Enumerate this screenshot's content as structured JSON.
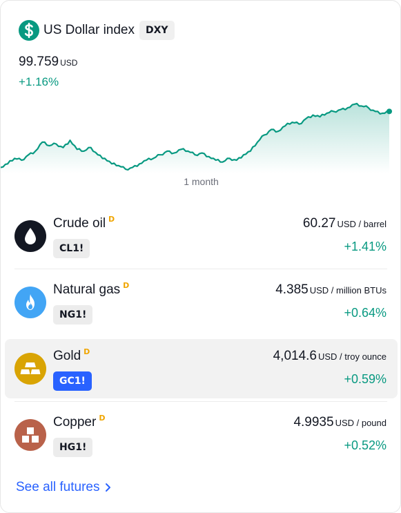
{
  "index": {
    "title": "US Dollar index",
    "ticker": "DXY",
    "price": "99.759",
    "currency": "USD",
    "change": "+1.16%",
    "period": "1 month",
    "icon": "dollar-icon",
    "accent_color": "#089981",
    "chart_data": {
      "type": "area",
      "series": [
        {
          "values": [
            97.85,
            97.95,
            98.1,
            98.05,
            98.2,
            98.3,
            98.55,
            98.45,
            98.5,
            98.4,
            98.6,
            98.35,
            98.3,
            98.4,
            98.2,
            98.1,
            97.95,
            97.9,
            97.8,
            97.85,
            97.95,
            98.05,
            98.1,
            98.2,
            98.3,
            98.25,
            98.35,
            98.3,
            98.2,
            98.25,
            98.15,
            98.05,
            98.0,
            98.1,
            98.05,
            98.2,
            98.3,
            98.55,
            98.75,
            98.9,
            98.85,
            99.0,
            99.1,
            99.05,
            99.2,
            99.3,
            99.25,
            99.35,
            99.4,
            99.45,
            99.5,
            99.6,
            99.55,
            99.5,
            99.4,
            99.35,
            99.4
          ]
        }
      ],
      "grid": false
    }
  },
  "futures": [
    {
      "name": "Crude oil",
      "badge": "D",
      "ticker": "CL1!",
      "price": "60.27",
      "unit": "USD / barrel",
      "change": "+1.41%",
      "icon": "oil-drop-icon",
      "icon_color": "#131722",
      "active": false
    },
    {
      "name": "Natural gas",
      "badge": "D",
      "ticker": "NG1!",
      "price": "4.385",
      "unit": "USD / million BTUs",
      "change": "+0.64%",
      "icon": "flame-icon",
      "icon_color": "#42a5f5",
      "active": false
    },
    {
      "name": "Gold",
      "badge": "D",
      "ticker": "GC1!",
      "price": "4,014.6",
      "unit": "USD / troy ounce",
      "change": "+0.59%",
      "icon": "gold-bars-icon",
      "icon_color": "#d9a404",
      "active": true
    },
    {
      "name": "Copper",
      "badge": "D",
      "ticker": "HG1!",
      "price": "4.9935",
      "unit": "USD / pound",
      "change": "+0.52%",
      "icon": "copper-blocks-icon",
      "icon_color": "#b9624a",
      "active": false
    }
  ],
  "see_all": {
    "label": "See all futures",
    "color": "#2962ff"
  }
}
